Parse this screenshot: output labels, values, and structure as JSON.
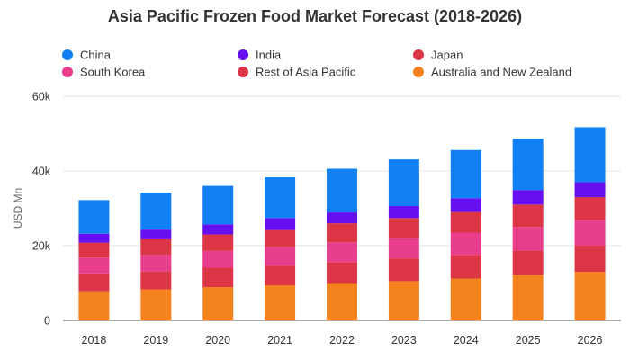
{
  "chart_data": {
    "type": "bar",
    "stacked": true,
    "title": "Asia Pacific Frozen Food Market Forecast (2018-2026)",
    "xlabel": "",
    "ylabel": "USD Mn",
    "ylim": [
      0,
      60000
    ],
    "yticks": [
      0,
      20000,
      40000,
      60000
    ],
    "ytick_labels": [
      "0",
      "20k",
      "40k",
      "60k"
    ],
    "grid": true,
    "legend_position": "top",
    "categories": [
      "2018",
      "2019",
      "2020",
      "2021",
      "2022",
      "2023",
      "2024",
      "2025",
      "2026"
    ],
    "series": [
      {
        "name": "Australia and New Zealand",
        "color": "#f4831f",
        "values": [
          7800,
          8300,
          8900,
          9400,
          10000,
          10500,
          11200,
          12200,
          13000
        ]
      },
      {
        "name": "Rest of Asia Pacific",
        "color": "#dc3545",
        "values": [
          4800,
          4800,
          5200,
          5400,
          5600,
          6100,
          6300,
          6500,
          7000
        ]
      },
      {
        "name": "South Korea",
        "color": "#e83e8c",
        "values": [
          4200,
          4400,
          4500,
          4800,
          5300,
          5500,
          6000,
          6300,
          6800
        ]
      },
      {
        "name": "Japan",
        "color": "#dc3545",
        "values": [
          4000,
          4200,
          4400,
          4600,
          5100,
          5300,
          5500,
          6000,
          6200
        ]
      },
      {
        "name": "India",
        "color": "#6610f2",
        "values": [
          2400,
          2600,
          2700,
          3200,
          2900,
          3200,
          3700,
          3900,
          4000
        ]
      },
      {
        "name": "China",
        "color": "#1080f4",
        "values": [
          9000,
          9900,
          10300,
          10900,
          11700,
          12500,
          12900,
          13700,
          14700
        ]
      }
    ]
  },
  "legend": [
    {
      "label": "China",
      "color": "#1080f4"
    },
    {
      "label": "India",
      "color": "#6610f2"
    },
    {
      "label": "Japan",
      "color": "#dc3545"
    },
    {
      "label": "South Korea",
      "color": "#e83e8c"
    },
    {
      "label": "Rest of Asia Pacific",
      "color": "#dc3545"
    },
    {
      "label": "Australia and New Zealand",
      "color": "#f4831f"
    }
  ]
}
